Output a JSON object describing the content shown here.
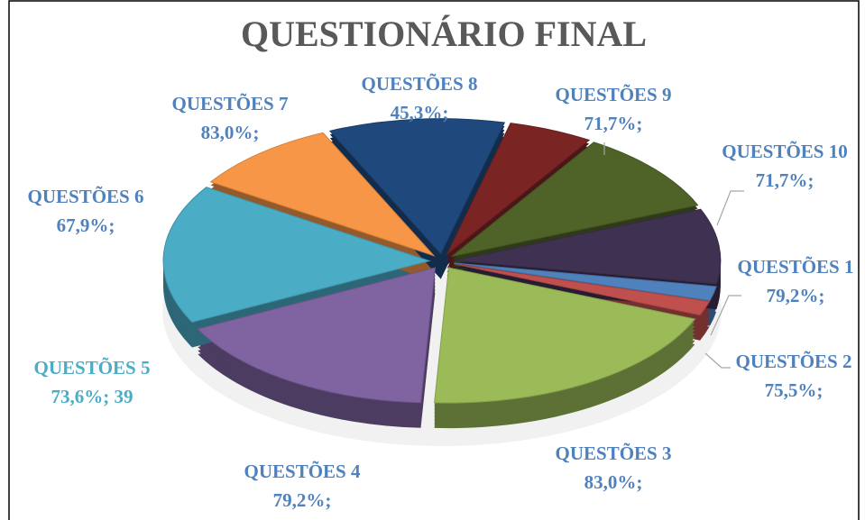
{
  "chart_data": {
    "type": "pie",
    "title": "QUESTIONÁRIO FINAL",
    "categories": [
      "QUESTÕES 1",
      "QUESTÕES 2",
      "QUESTÕES 3",
      "QUESTÕES 4",
      "QUESTÕES 5",
      "QUESTÕES 6",
      "QUESTÕES 7",
      "QUESTÕES 8",
      "QUESTÕES 9",
      "QUESTÕES 10"
    ],
    "values": [
      4,
      4,
      46,
      39,
      39,
      21,
      25,
      12,
      23,
      21
    ],
    "percent_labels": [
      "79,2%;",
      "75,5%;",
      "83,0%;",
      "79,2%;",
      "73,6%; 39",
      "67,9%;",
      "83,0%;",
      "45,3%;",
      "71,7%;",
      "71,7%;"
    ],
    "colors": [
      "#4f81bd",
      "#c0504d",
      "#9bbb59",
      "#8064a2",
      "#4bacc6",
      "#f79646",
      "#1f497d",
      "#7b2424",
      "#4f6228",
      "#3f3151"
    ],
    "label_colors": [
      "#4f81bd",
      "#4f81bd",
      "#4f81bd",
      "#4f81bd",
      "#4bacc6",
      "#4f81bd",
      "#4f81bd",
      "#4f81bd",
      "#4f81bd",
      "#4f81bd"
    ]
  }
}
